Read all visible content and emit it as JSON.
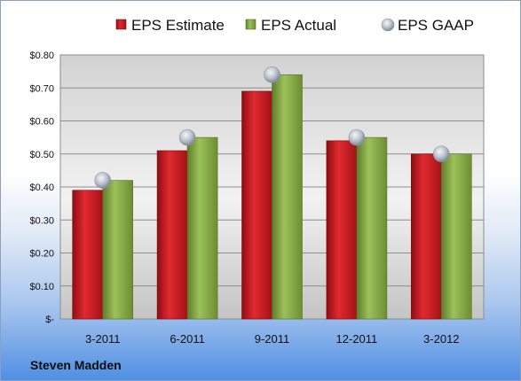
{
  "chart_data": {
    "type": "bar",
    "categories": [
      "3-2011",
      "6-2011",
      "9-2011",
      "12-2011",
      "3-2012"
    ],
    "series": [
      {
        "name": "EPS Estimate",
        "marker": "bar",
        "color": "#d51f26",
        "values": [
          0.39,
          0.51,
          0.69,
          0.54,
          0.5
        ]
      },
      {
        "name": "EPS Actual",
        "marker": "bar",
        "color": "#8fb34a",
        "values": [
          0.42,
          0.55,
          0.74,
          0.55,
          0.5
        ]
      },
      {
        "name": "EPS GAAP",
        "marker": "circle",
        "color": "#b9bfc8",
        "values": [
          0.42,
          0.55,
          0.74,
          0.55,
          0.5
        ]
      }
    ],
    "ylim": [
      0,
      0.8
    ],
    "yticks": [
      0,
      0.1,
      0.2,
      0.3,
      0.4,
      0.5,
      0.6,
      0.7,
      0.8
    ],
    "ytick_labels": [
      "$-",
      "$0.10",
      "$0.20",
      "$0.30",
      "$0.40",
      "$0.50",
      "$0.60",
      "$0.70",
      "$0.80"
    ],
    "grid": true,
    "legend_position": "top"
  },
  "footer": {
    "company": "Steven Madden"
  }
}
